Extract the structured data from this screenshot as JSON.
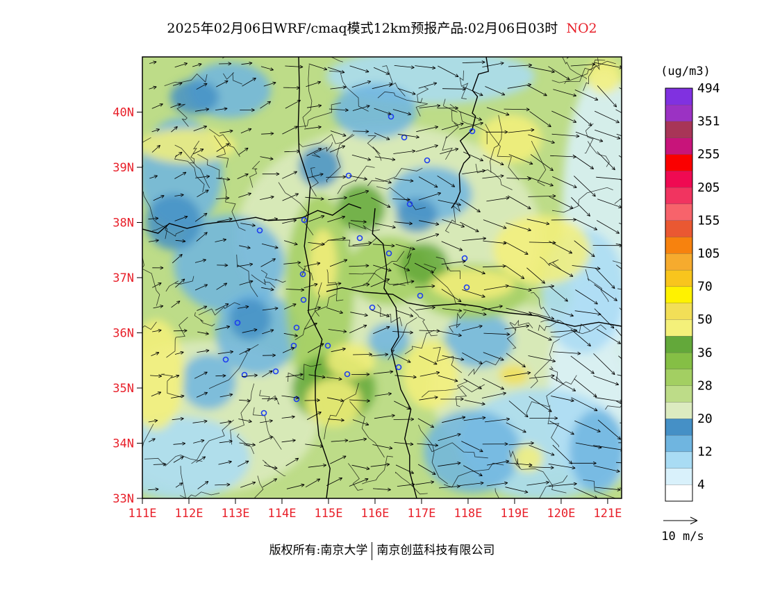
{
  "header": {
    "title": "2025年02月06日WRF/cmaq模式12km预报产品:02月06日03时",
    "pollutant": "NO2"
  },
  "footer": {
    "copyright_label": "版权所有:南京大学",
    "company": "南京创蓝科技有限公司"
  },
  "axes": {
    "lat_labels": [
      "40N",
      "39N",
      "38N",
      "37N",
      "36N",
      "35N",
      "34N",
      "33N"
    ],
    "lat_values": [
      40,
      39,
      38,
      37,
      36,
      35,
      34,
      33
    ],
    "lon_labels": [
      "111E",
      "112E",
      "113E",
      "114E",
      "115E",
      "116E",
      "117E",
      "118E",
      "119E",
      "120E",
      "121E"
    ],
    "lon_values": [
      111,
      112,
      113,
      114,
      115,
      116,
      117,
      118,
      119,
      120,
      121
    ],
    "lat_range": [
      33,
      41
    ],
    "lon_range": [
      111,
      121.3
    ],
    "label_color": "#e8202a"
  },
  "legend": {
    "unit": "(ug/m3)",
    "bands": [
      {
        "color": "#ffffff"
      },
      {
        "color": "#d9f1fb"
      },
      {
        "color": "#a9dcf4"
      },
      {
        "color": "#6fb5e0"
      },
      {
        "color": "#4590c6"
      },
      {
        "color": "#dcebc0"
      },
      {
        "color": "#bddc88"
      },
      {
        "color": "#a3cf62"
      },
      {
        "color": "#85bf45"
      },
      {
        "color": "#63a83a"
      },
      {
        "color": "#f4f07a"
      },
      {
        "color": "#f2df57"
      },
      {
        "color": "#fff200"
      },
      {
        "color": "#f8c51d"
      },
      {
        "color": "#f6ab2e"
      },
      {
        "color": "#f7820e"
      },
      {
        "color": "#ea5832"
      },
      {
        "color": "#f7636b"
      },
      {
        "color": "#f13460"
      },
      {
        "color": "#ef0a52"
      },
      {
        "color": "#fa0000"
      },
      {
        "color": "#c8147a"
      },
      {
        "color": "#a83557"
      },
      {
        "color": "#9b32c3"
      },
      {
        "color": "#8031e0"
      }
    ],
    "tick_labels": [
      "4",
      "12",
      "20",
      "28",
      "36",
      "50",
      "70",
      "105",
      "155",
      "205",
      "255",
      "351",
      "494"
    ]
  },
  "wind_key": {
    "label": "10 m/s"
  }
}
